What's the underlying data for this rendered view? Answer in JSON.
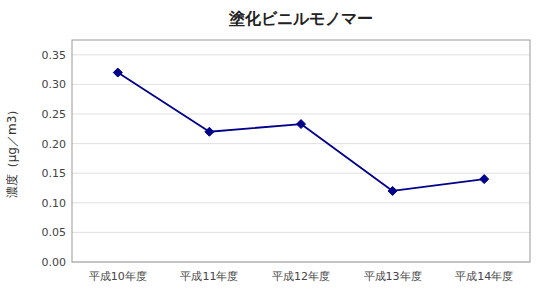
{
  "chart_data": {
    "type": "line",
    "title": "塗化ビニルモノマー",
    "ylabel": "濃度（μg／m3）",
    "categories": [
      "平成10年度",
      "平成11年度",
      "平成12年度",
      "平成13年度",
      "平成14年度"
    ],
    "values": [
      0.32,
      0.22,
      0.233,
      0.12,
      0.14
    ],
    "color": "#00008B",
    "marker": "diamond",
    "line_style": "solid",
    "ylim": [
      0.0,
      0.375
    ],
    "yticks": [
      {
        "value": 0.0,
        "label": "0.00"
      },
      0.05,
      {
        "value": 0.1,
        "label": "0.10"
      },
      0.15,
      {
        "value": 0.2,
        "label": "0.20"
      },
      0.25,
      {
        "value": 0.3,
        "label": "0.30"
      },
      0.35
    ],
    "grid": true
  }
}
